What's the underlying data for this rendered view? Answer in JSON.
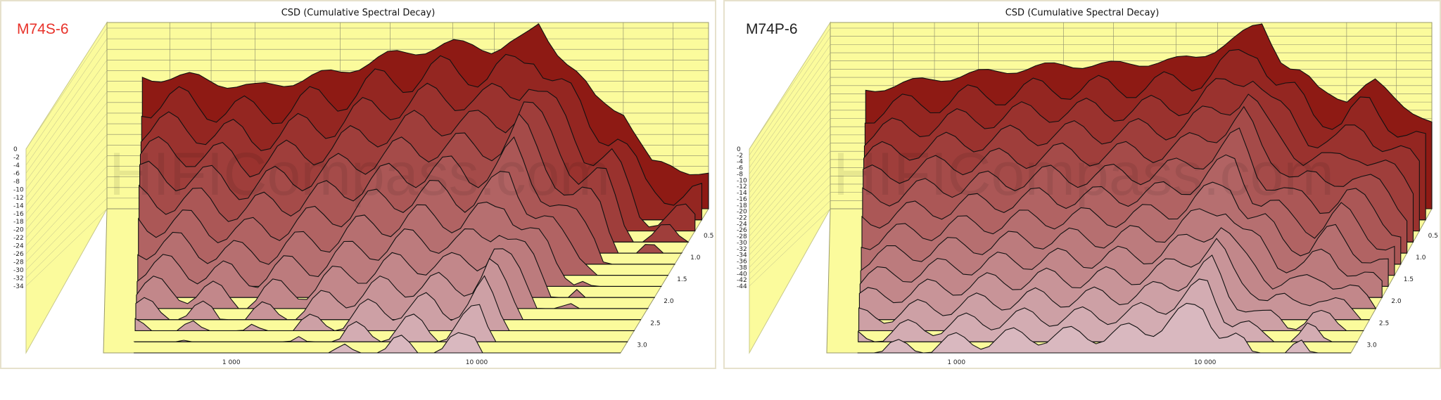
{
  "colors": {
    "wall": "#fbfb9c",
    "grid": "#8a8a6a",
    "front": "#8e1a14",
    "back": "#d9b8bf",
    "outline": "#111111",
    "left_label": "#e8322a",
    "right_label": "#222222",
    "watermark": "#000000"
  },
  "watermark_text": "HIFICompass.com",
  "chart_data": [
    {
      "type": "waterfall",
      "model_label": "M74S-6",
      "title": "CSD (Cumulative Spectral Decay)",
      "z_tick_labels": [
        "0",
        "-2",
        "-4",
        "-6",
        "-8",
        "-10",
        "-12",
        "-14",
        "-16",
        "-18",
        "-20",
        "-22",
        "-24",
        "-26",
        "-28",
        "-30",
        "-32",
        "-34"
      ],
      "zlim": [
        -34,
        0
      ],
      "x_scale": "log",
      "xlim": [
        300,
        40000
      ],
      "x_tick_labels": [
        {
          "value": 1000,
          "label": "1 000"
        },
        {
          "value": 10000,
          "label": "10 000"
        }
      ],
      "time_tick_labels": [
        {
          "value": 0.5,
          "label": "0.5"
        },
        {
          "value": 1.0,
          "label": "1.0"
        },
        {
          "value": 1.5,
          "label": "1.5"
        },
        {
          "value": 2.0,
          "label": "2.0"
        },
        {
          "value": 2.5,
          "label": "2.5"
        },
        {
          "value": 3.0,
          "label": "3.0"
        }
      ],
      "time_range": [
        0,
        3.3
      ],
      "slice_count": 14,
      "first_slice_x_freq": [
        400,
        600,
        1000,
        2000,
        3000,
        5000,
        6000,
        7000,
        8000,
        9000,
        10000,
        12000,
        14000,
        16000,
        20000,
        25000,
        30000,
        40000
      ],
      "first_slice_db": [
        -10,
        -10,
        -12,
        -9,
        -6,
        -4,
        -4,
        -5,
        -4,
        -3,
        0,
        -6,
        -10,
        -14,
        -16,
        -26,
        -26,
        -28
      ]
    },
    {
      "type": "waterfall",
      "model_label": "M74P-6",
      "title": "CSD (Cumulative Spectral Decay)",
      "z_tick_labels": [
        "0",
        "-2",
        "-4",
        "-6",
        "-8",
        "-10",
        "-12",
        "-14",
        "-16",
        "-18",
        "-20",
        "-22",
        "-24",
        "-26",
        "-28",
        "-30",
        "-32",
        "-34",
        "-36",
        "-38",
        "-40",
        "-42",
        "-44"
      ],
      "zlim": [
        -44,
        0
      ],
      "x_scale": "log",
      "xlim": [
        300,
        40000
      ],
      "x_tick_labels": [
        {
          "value": 1000,
          "label": "1 000"
        },
        {
          "value": 10000,
          "label": "10 000"
        }
      ],
      "time_tick_labels": [
        {
          "value": 0.5,
          "label": "0.5"
        },
        {
          "value": 1.0,
          "label": "1.0"
        },
        {
          "value": 1.5,
          "label": "1.5"
        },
        {
          "value": 2.0,
          "label": "2.0"
        },
        {
          "value": 2.5,
          "label": "2.5"
        },
        {
          "value": 3.0,
          "label": "3.0"
        }
      ],
      "time_range": [
        0,
        3.3
      ],
      "slice_count": 14,
      "first_slice_x_freq": [
        400,
        600,
        1000,
        2000,
        3000,
        5000,
        6000,
        7000,
        8000,
        9000,
        10000,
        12000,
        14000,
        16000,
        20000,
        25000,
        30000,
        40000
      ],
      "first_slice_db": [
        -16,
        -14,
        -12,
        -10,
        -10,
        -9,
        -8,
        -6,
        -4,
        -2,
        0,
        -10,
        -12,
        -16,
        -18,
        -14,
        -18,
        -24
      ]
    }
  ]
}
